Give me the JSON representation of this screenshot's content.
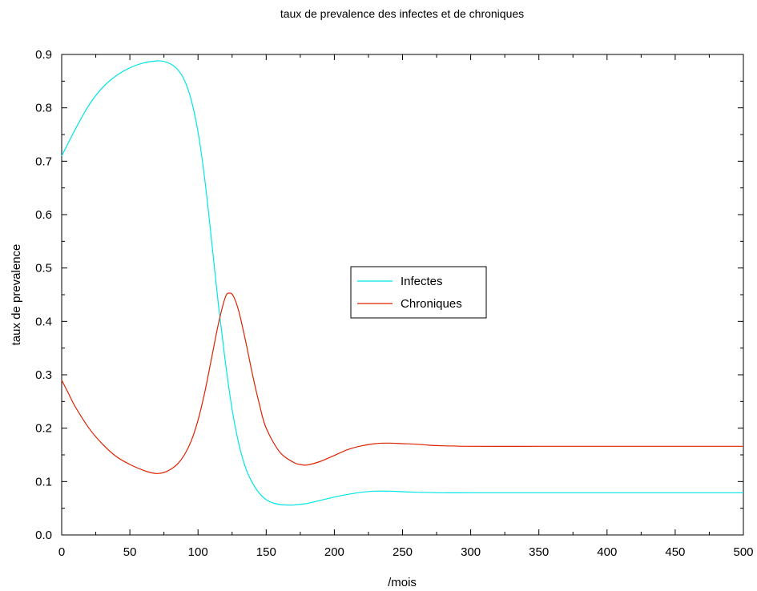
{
  "chart_data": {
    "type": "line",
    "title": "taux de prevalence des infectes et de chroniques",
    "xlabel": "/mois",
    "ylabel": "taux de prevalence",
    "xlim": [
      0,
      500
    ],
    "ylim": [
      0,
      0.9
    ],
    "x_ticks": [
      0,
      50,
      100,
      150,
      200,
      250,
      300,
      350,
      400,
      450,
      500
    ],
    "x_tick_labels": [
      "0",
      "50",
      "100",
      "150",
      "200",
      "250",
      "300",
      "350",
      "400",
      "450",
      "500"
    ],
    "y_ticks": [
      0,
      0.1,
      0.2,
      0.3,
      0.4,
      0.5,
      0.6,
      0.7,
      0.8,
      0.9
    ],
    "y_tick_labels": [
      "0.0",
      "0.1",
      "0.2",
      "0.3",
      "0.4",
      "0.5",
      "0.6",
      "0.7",
      "0.8",
      "0.9"
    ],
    "grid": false,
    "legend_position": "center",
    "series": [
      {
        "name": "Infectes",
        "color": "#00e5e5",
        "x": [
          0,
          5,
          10,
          20,
          30,
          40,
          50,
          60,
          70,
          75,
          80,
          85,
          90,
          95,
          100,
          105,
          110,
          115,
          120,
          125,
          130,
          135,
          140,
          145,
          150,
          155,
          160,
          165,
          170,
          180,
          190,
          200,
          210,
          220,
          230,
          240,
          250,
          260,
          280,
          300,
          350,
          400,
          450,
          500
        ],
        "y": [
          0.71,
          0.735,
          0.76,
          0.805,
          0.838,
          0.86,
          0.875,
          0.884,
          0.888,
          0.887,
          0.882,
          0.872,
          0.852,
          0.815,
          0.755,
          0.665,
          0.55,
          0.43,
          0.325,
          0.235,
          0.17,
          0.125,
          0.097,
          0.078,
          0.066,
          0.06,
          0.057,
          0.056,
          0.056,
          0.059,
          0.065,
          0.071,
          0.076,
          0.08,
          0.082,
          0.082,
          0.081,
          0.08,
          0.079,
          0.079,
          0.079,
          0.079,
          0.079,
          0.079
        ]
      },
      {
        "name": "Chroniques",
        "color": "#dd2200",
        "x": [
          0,
          5,
          10,
          20,
          30,
          40,
          50,
          60,
          65,
          70,
          75,
          80,
          85,
          90,
          95,
          100,
          105,
          110,
          115,
          120,
          123,
          126,
          130,
          135,
          140,
          145,
          150,
          160,
          170,
          175,
          180,
          190,
          200,
          210,
          220,
          230,
          240,
          250,
          260,
          270,
          280,
          300,
          350,
          400,
          450,
          500
        ],
        "y": [
          0.29,
          0.265,
          0.24,
          0.2,
          0.17,
          0.147,
          0.132,
          0.121,
          0.117,
          0.115,
          0.117,
          0.123,
          0.133,
          0.15,
          0.176,
          0.215,
          0.268,
          0.332,
          0.396,
          0.445,
          0.453,
          0.447,
          0.418,
          0.362,
          0.3,
          0.245,
          0.2,
          0.155,
          0.136,
          0.132,
          0.131,
          0.138,
          0.149,
          0.16,
          0.167,
          0.171,
          0.172,
          0.171,
          0.17,
          0.168,
          0.167,
          0.166,
          0.166,
          0.166,
          0.166,
          0.166
        ]
      }
    ]
  }
}
